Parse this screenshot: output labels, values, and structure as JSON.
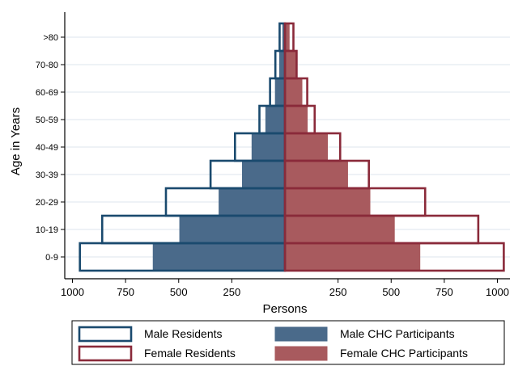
{
  "chart_data": {
    "type": "bar",
    "subtype": "population-pyramid",
    "orientation": "horizontal",
    "title": "",
    "xlabel": "Persons",
    "ylabel": "Age in Years",
    "categories": [
      "0-9",
      "10-19",
      "20-29",
      "30-39",
      "40-49",
      "50-59",
      "60-69",
      "70-80",
      ">80"
    ],
    "x_ticks": [
      "1000",
      "750",
      "500",
      "250",
      "250",
      "500",
      "750",
      "1000"
    ],
    "xlim_each_side": [
      0,
      1000
    ],
    "grid": true,
    "legend_position": "bottom",
    "series": [
      {
        "name": "Male Residents",
        "side": "left",
        "style": "outline",
        "color": "#1a4a6e",
        "values": [
          965,
          860,
          560,
          350,
          235,
          120,
          70,
          45,
          25
        ]
      },
      {
        "name": "Male CHC Participants",
        "side": "left",
        "style": "filled",
        "color": "#4a6a8a",
        "values": [
          620,
          495,
          310,
          200,
          155,
          90,
          45,
          25,
          10
        ]
      },
      {
        "name": "Female Residents",
        "side": "right",
        "style": "outline",
        "color": "#8a2a3a",
        "values": [
          1030,
          910,
          660,
          395,
          260,
          140,
          105,
          55,
          40
        ]
      },
      {
        "name": "Female CHC Participants",
        "side": "right",
        "style": "filled",
        "color": "#a85a5e",
        "values": [
          635,
          515,
          400,
          295,
          200,
          105,
          80,
          50,
          20
        ]
      }
    ]
  }
}
